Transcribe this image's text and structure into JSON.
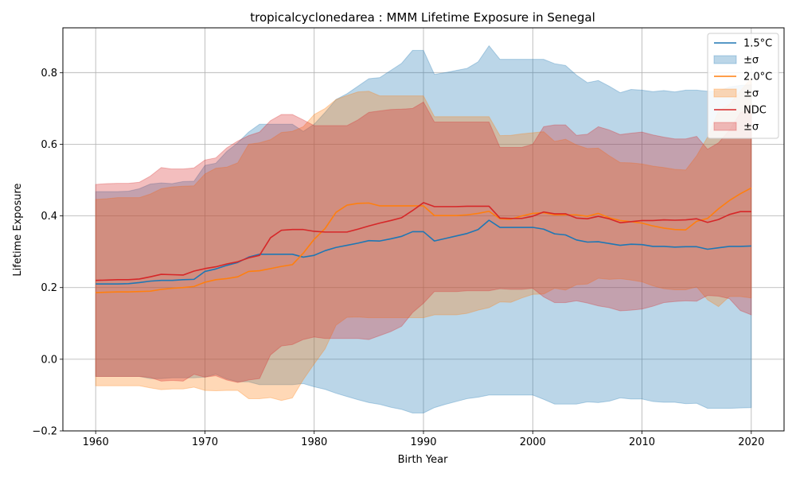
{
  "chart_data": {
    "type": "area",
    "title": "tropicalcyclonedarea : MMM Lifetime Exposure in Senegal",
    "xlabel": "Birth Year",
    "ylabel": "Lifetime Exposure",
    "xlim": [
      1957,
      2023
    ],
    "ylim": [
      -0.2,
      0.925
    ],
    "xticks": [
      1960,
      1970,
      1980,
      1990,
      2000,
      2010,
      2020
    ],
    "xtick_labels": [
      "1960",
      "1970",
      "1980",
      "1990",
      "2000",
      "2010",
      "2020"
    ],
    "yticks": [
      -0.2,
      0.0,
      0.2,
      0.4,
      0.6,
      0.8
    ],
    "ytick_labels": [
      "−0.2",
      "0.0",
      "0.2",
      "0.4",
      "0.6",
      "0.8"
    ],
    "grid": true,
    "legend_position": "top-right",
    "x": [
      1960,
      1961,
      1962,
      1963,
      1964,
      1965,
      1966,
      1967,
      1968,
      1969,
      1970,
      1971,
      1972,
      1973,
      1974,
      1975,
      1976,
      1977,
      1978,
      1979,
      1980,
      1981,
      1982,
      1983,
      1984,
      1985,
      1986,
      1987,
      1988,
      1989,
      1990,
      1991,
      1992,
      1993,
      1994,
      1995,
      1996,
      1997,
      1998,
      1999,
      2000,
      2001,
      2002,
      2003,
      2004,
      2005,
      2006,
      2007,
      2008,
      2009,
      2010,
      2011,
      2012,
      2013,
      2014,
      2015,
      2016,
      2017,
      2018,
      2019,
      2020
    ],
    "series": [
      {
        "name": "1.5°C",
        "band_name": "±σ",
        "color": "#1f77b4",
        "values": [
          0.21,
          0.21,
          0.21,
          0.211,
          0.214,
          0.218,
          0.22,
          0.22,
          0.222,
          0.223,
          0.245,
          0.252,
          0.262,
          0.27,
          0.285,
          0.293,
          0.293,
          0.293,
          0.293,
          0.285,
          0.29,
          0.303,
          0.312,
          0.318,
          0.324,
          0.331,
          0.33,
          0.336,
          0.343,
          0.356,
          0.356,
          0.33,
          0.337,
          0.344,
          0.351,
          0.362,
          0.388,
          0.368,
          0.368,
          0.368,
          0.368,
          0.363,
          0.35,
          0.347,
          0.333,
          0.327,
          0.328,
          0.323,
          0.318,
          0.321,
          0.32,
          0.315,
          0.315,
          0.313,
          0.314,
          0.314,
          0.307,
          0.311,
          0.315,
          0.315,
          0.316
        ],
        "upper": [
          0.468,
          0.468,
          0.468,
          0.469,
          0.476,
          0.489,
          0.492,
          0.49,
          0.496,
          0.497,
          0.541,
          0.547,
          0.58,
          0.604,
          0.634,
          0.656,
          0.656,
          0.656,
          0.656,
          0.636,
          0.656,
          0.689,
          0.725,
          0.741,
          0.762,
          0.783,
          0.786,
          0.806,
          0.826,
          0.862,
          0.862,
          0.795,
          0.8,
          0.806,
          0.812,
          0.83,
          0.875,
          0.837,
          0.837,
          0.837,
          0.837,
          0.837,
          0.825,
          0.82,
          0.793,
          0.772,
          0.778,
          0.762,
          0.744,
          0.753,
          0.751,
          0.747,
          0.75,
          0.746,
          0.751,
          0.751,
          0.748,
          0.748,
          0.76,
          0.764,
          0.766
        ],
        "lower": [
          -0.048,
          -0.048,
          -0.048,
          -0.048,
          -0.048,
          -0.054,
          -0.054,
          -0.052,
          -0.052,
          -0.052,
          -0.05,
          -0.042,
          -0.055,
          -0.063,
          -0.063,
          -0.071,
          -0.071,
          -0.071,
          -0.071,
          -0.068,
          -0.077,
          -0.084,
          -0.095,
          -0.104,
          -0.113,
          -0.121,
          -0.126,
          -0.134,
          -0.14,
          -0.15,
          -0.15,
          -0.135,
          -0.126,
          -0.118,
          -0.11,
          -0.106,
          -0.1,
          -0.1,
          -0.1,
          -0.1,
          -0.1,
          -0.112,
          -0.125,
          -0.125,
          -0.125,
          -0.119,
          -0.121,
          -0.117,
          -0.108,
          -0.111,
          -0.111,
          -0.118,
          -0.12,
          -0.12,
          -0.124,
          -0.123,
          -0.137,
          -0.137,
          -0.137,
          -0.136,
          -0.135
        ]
      },
      {
        "name": "2.0°C",
        "band_name": "±σ",
        "color": "#ff7f0e",
        "values": [
          0.186,
          0.187,
          0.188,
          0.188,
          0.189,
          0.19,
          0.195,
          0.198,
          0.2,
          0.203,
          0.215,
          0.222,
          0.225,
          0.23,
          0.245,
          0.247,
          0.253,
          0.259,
          0.264,
          0.296,
          0.335,
          0.365,
          0.41,
          0.43,
          0.435,
          0.436,
          0.428,
          0.428,
          0.428,
          0.428,
          0.428,
          0.401,
          0.401,
          0.401,
          0.403,
          0.407,
          0.413,
          0.392,
          0.391,
          0.4,
          0.407,
          0.409,
          0.403,
          0.403,
          0.403,
          0.399,
          0.407,
          0.395,
          0.387,
          0.384,
          0.38,
          0.372,
          0.366,
          0.362,
          0.361,
          0.385,
          0.393,
          0.42,
          0.443,
          0.462,
          0.478
        ],
        "upper": [
          0.446,
          0.448,
          0.451,
          0.451,
          0.451,
          0.461,
          0.476,
          0.481,
          0.483,
          0.484,
          0.517,
          0.533,
          0.536,
          0.548,
          0.6,
          0.604,
          0.613,
          0.633,
          0.636,
          0.649,
          0.683,
          0.7,
          0.725,
          0.736,
          0.746,
          0.748,
          0.735,
          0.735,
          0.735,
          0.735,
          0.735,
          0.677,
          0.677,
          0.677,
          0.677,
          0.677,
          0.677,
          0.624,
          0.625,
          0.629,
          0.632,
          0.635,
          0.608,
          0.614,
          0.598,
          0.588,
          0.589,
          0.568,
          0.549,
          0.548,
          0.545,
          0.539,
          0.535,
          0.53,
          0.528,
          0.568,
          0.62,
          0.693,
          0.711,
          0.749,
          0.785
        ],
        "lower": [
          -0.074,
          -0.074,
          -0.074,
          -0.074,
          -0.074,
          -0.08,
          -0.085,
          -0.083,
          -0.083,
          -0.078,
          -0.087,
          -0.088,
          -0.087,
          -0.087,
          -0.11,
          -0.11,
          -0.107,
          -0.115,
          -0.108,
          -0.057,
          -0.013,
          0.029,
          0.095,
          0.117,
          0.118,
          0.116,
          0.116,
          0.116,
          0.116,
          0.116,
          0.116,
          0.124,
          0.124,
          0.124,
          0.128,
          0.137,
          0.144,
          0.16,
          0.159,
          0.171,
          0.181,
          0.182,
          0.198,
          0.193,
          0.208,
          0.21,
          0.226,
          0.223,
          0.225,
          0.221,
          0.216,
          0.205,
          0.197,
          0.194,
          0.194,
          0.202,
          0.166,
          0.147,
          0.175,
          0.175,
          0.171
        ]
      },
      {
        "name": "NDC",
        "band_name": "±σ",
        "color": "#d62728",
        "values": [
          0.22,
          0.221,
          0.222,
          0.222,
          0.224,
          0.23,
          0.237,
          0.236,
          0.235,
          0.246,
          0.253,
          0.258,
          0.266,
          0.272,
          0.283,
          0.29,
          0.339,
          0.36,
          0.362,
          0.362,
          0.357,
          0.355,
          0.355,
          0.355,
          0.363,
          0.372,
          0.38,
          0.387,
          0.395,
          0.415,
          0.437,
          0.426,
          0.426,
          0.426,
          0.427,
          0.427,
          0.427,
          0.394,
          0.393,
          0.393,
          0.399,
          0.411,
          0.406,
          0.406,
          0.394,
          0.392,
          0.399,
          0.392,
          0.381,
          0.384,
          0.387,
          0.387,
          0.389,
          0.388,
          0.389,
          0.392,
          0.382,
          0.39,
          0.404,
          0.412,
          0.412
        ],
        "upper": [
          0.488,
          0.49,
          0.491,
          0.491,
          0.494,
          0.511,
          0.535,
          0.531,
          0.531,
          0.534,
          0.556,
          0.562,
          0.59,
          0.609,
          0.624,
          0.634,
          0.666,
          0.683,
          0.683,
          0.668,
          0.652,
          0.652,
          0.652,
          0.652,
          0.668,
          0.689,
          0.693,
          0.697,
          0.698,
          0.7,
          0.718,
          0.662,
          0.662,
          0.662,
          0.662,
          0.662,
          0.662,
          0.591,
          0.591,
          0.591,
          0.6,
          0.649,
          0.654,
          0.654,
          0.625,
          0.628,
          0.649,
          0.64,
          0.627,
          0.631,
          0.634,
          0.626,
          0.62,
          0.615,
          0.615,
          0.622,
          0.586,
          0.604,
          0.639,
          0.688,
          0.7
        ],
        "lower": [
          -0.048,
          -0.048,
          -0.048,
          -0.048,
          -0.048,
          -0.051,
          -0.061,
          -0.059,
          -0.061,
          -0.042,
          -0.05,
          -0.046,
          -0.058,
          -0.065,
          -0.058,
          -0.054,
          0.012,
          0.037,
          0.041,
          0.055,
          0.062,
          0.058,
          0.058,
          0.058,
          0.058,
          0.055,
          0.066,
          0.077,
          0.092,
          0.13,
          0.156,
          0.189,
          0.189,
          0.189,
          0.191,
          0.191,
          0.191,
          0.197,
          0.195,
          0.195,
          0.198,
          0.174,
          0.158,
          0.158,
          0.163,
          0.157,
          0.149,
          0.144,
          0.135,
          0.137,
          0.14,
          0.148,
          0.158,
          0.161,
          0.163,
          0.162,
          0.178,
          0.176,
          0.169,
          0.136,
          0.124
        ]
      }
    ]
  }
}
